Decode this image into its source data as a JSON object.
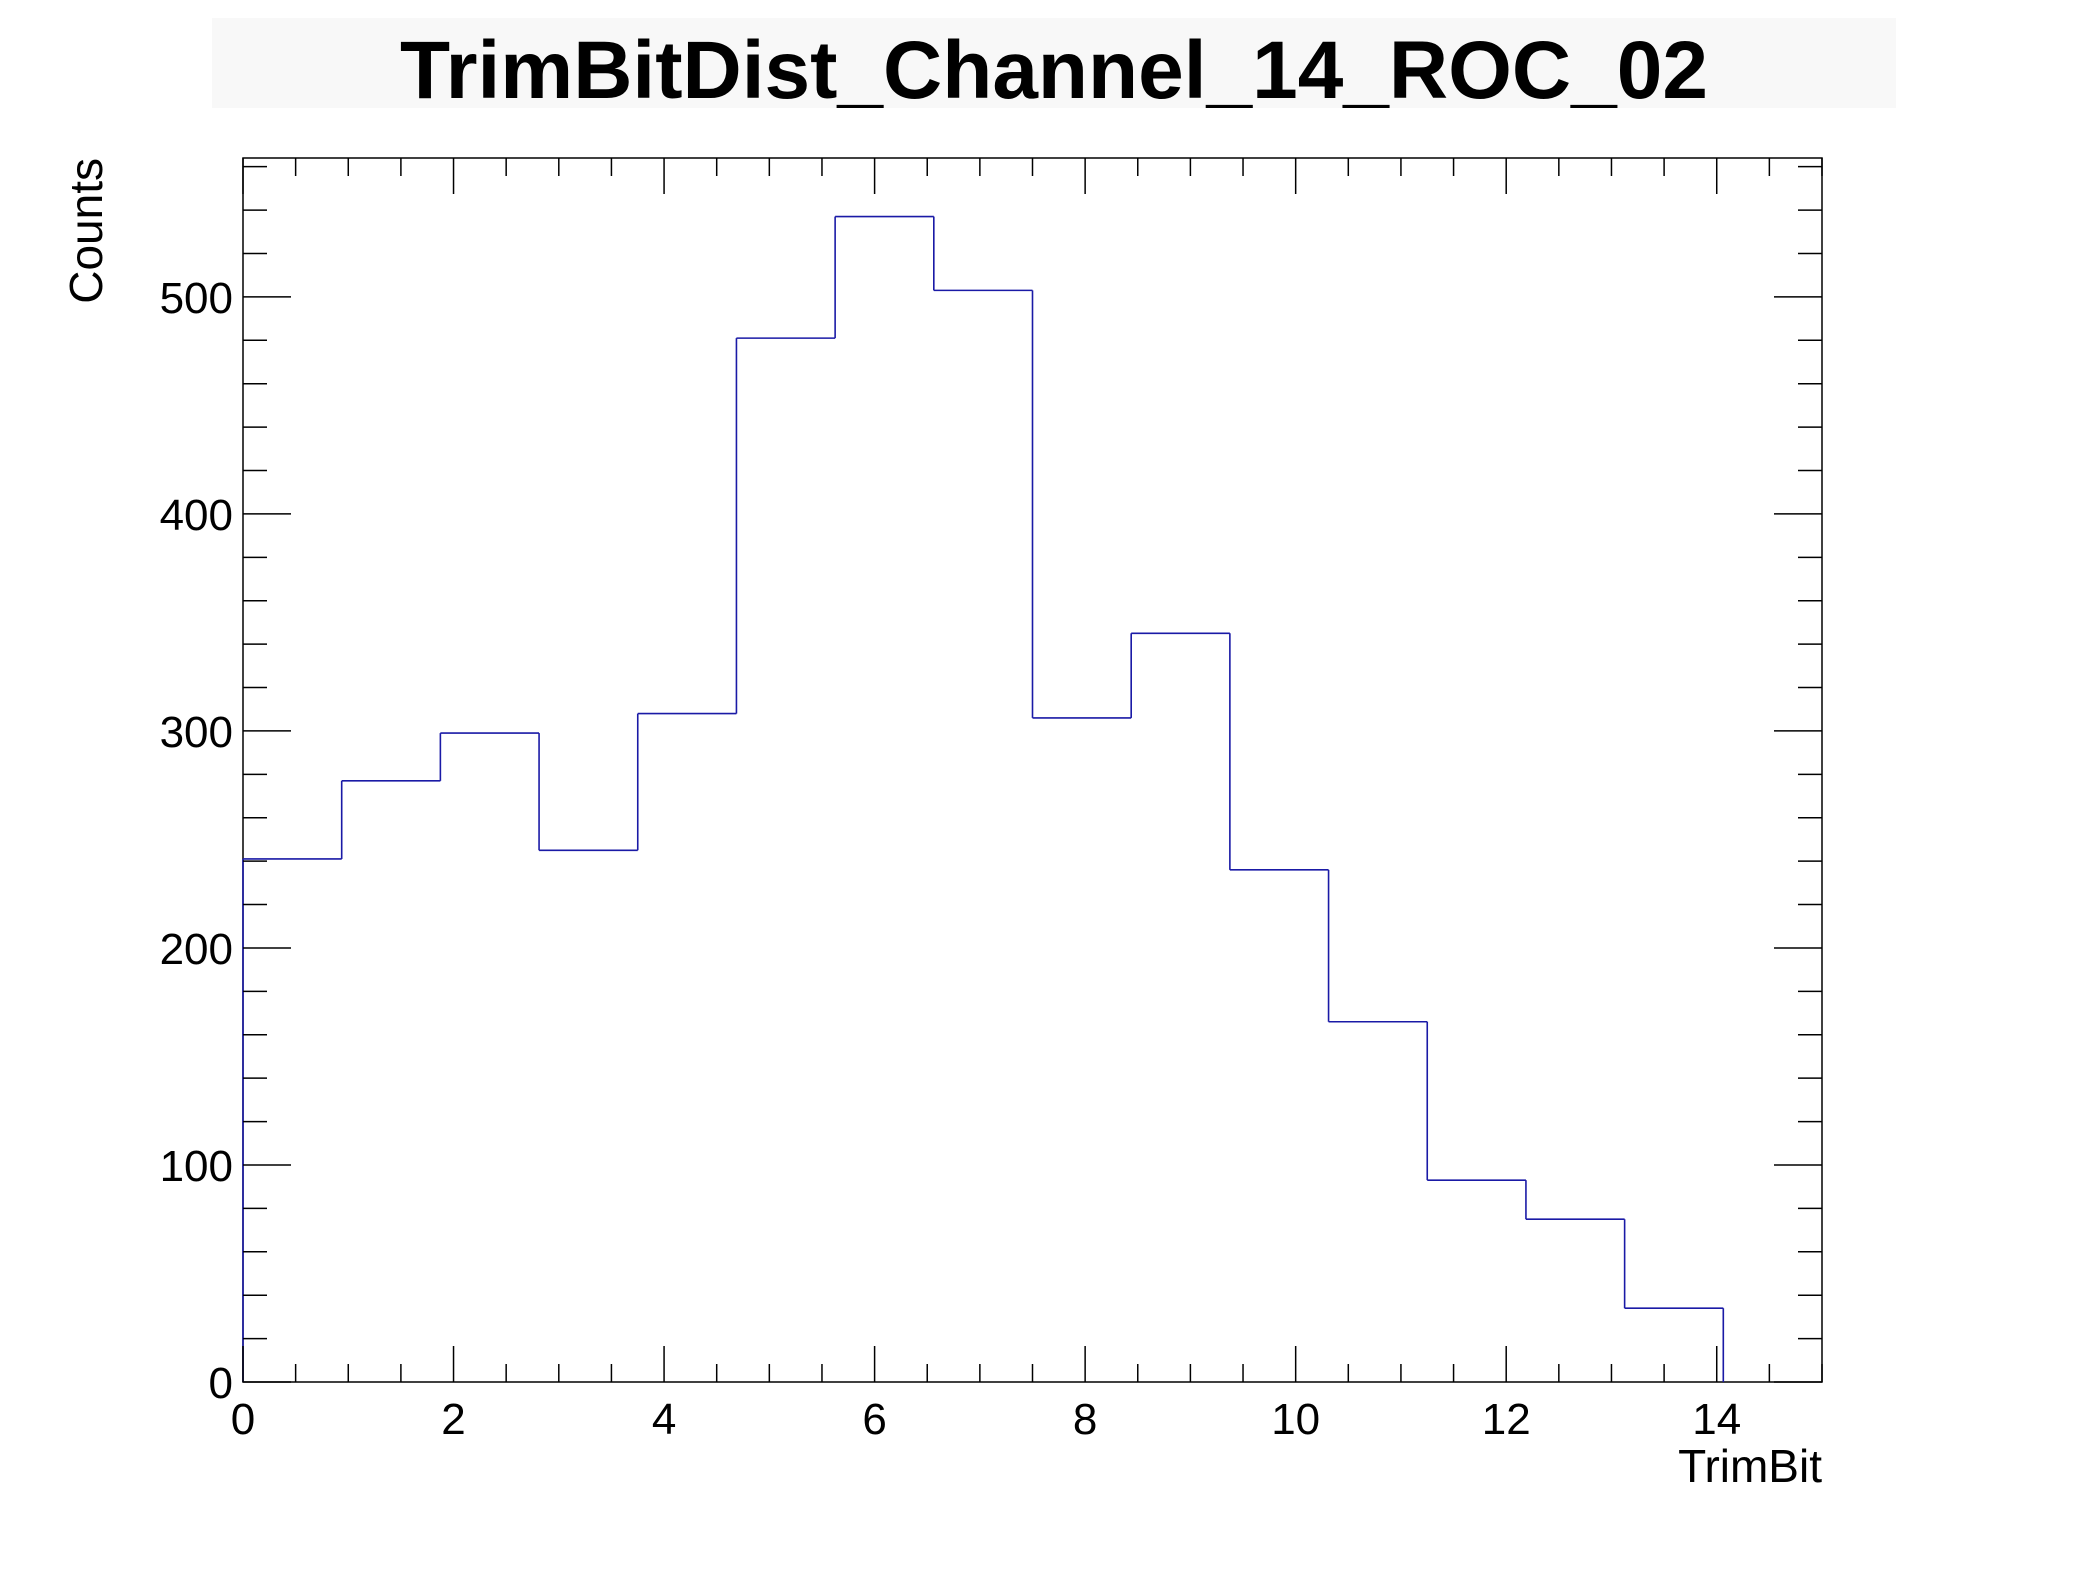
{
  "chart_data": {
    "type": "bar",
    "title": "TrimBitDist_Channel_14_ROC_02",
    "xlabel": "TrimBit",
    "ylabel": "Counts",
    "xlim": [
      0,
      15
    ],
    "ylim": [
      0,
      564
    ],
    "bin_edges": [
      0,
      0.9375,
      1.875,
      2.8125,
      3.75,
      4.6875,
      5.625,
      6.5625,
      7.5,
      8.4375,
      9.375,
      10.3125,
      11.25,
      12.1875,
      13.125,
      14.0625,
      15
    ],
    "values": [
      241,
      277,
      299,
      245,
      308,
      481,
      537,
      503,
      306,
      345,
      236,
      166,
      93,
      75,
      34,
      0
    ],
    "x_ticks": [
      "0",
      "2",
      "4",
      "6",
      "8",
      "10",
      "12",
      "14"
    ],
    "y_ticks": [
      "0",
      "100",
      "200",
      "300",
      "400",
      "500"
    ],
    "line_color": "#1a1aa6",
    "grid": false,
    "legend": "none"
  }
}
